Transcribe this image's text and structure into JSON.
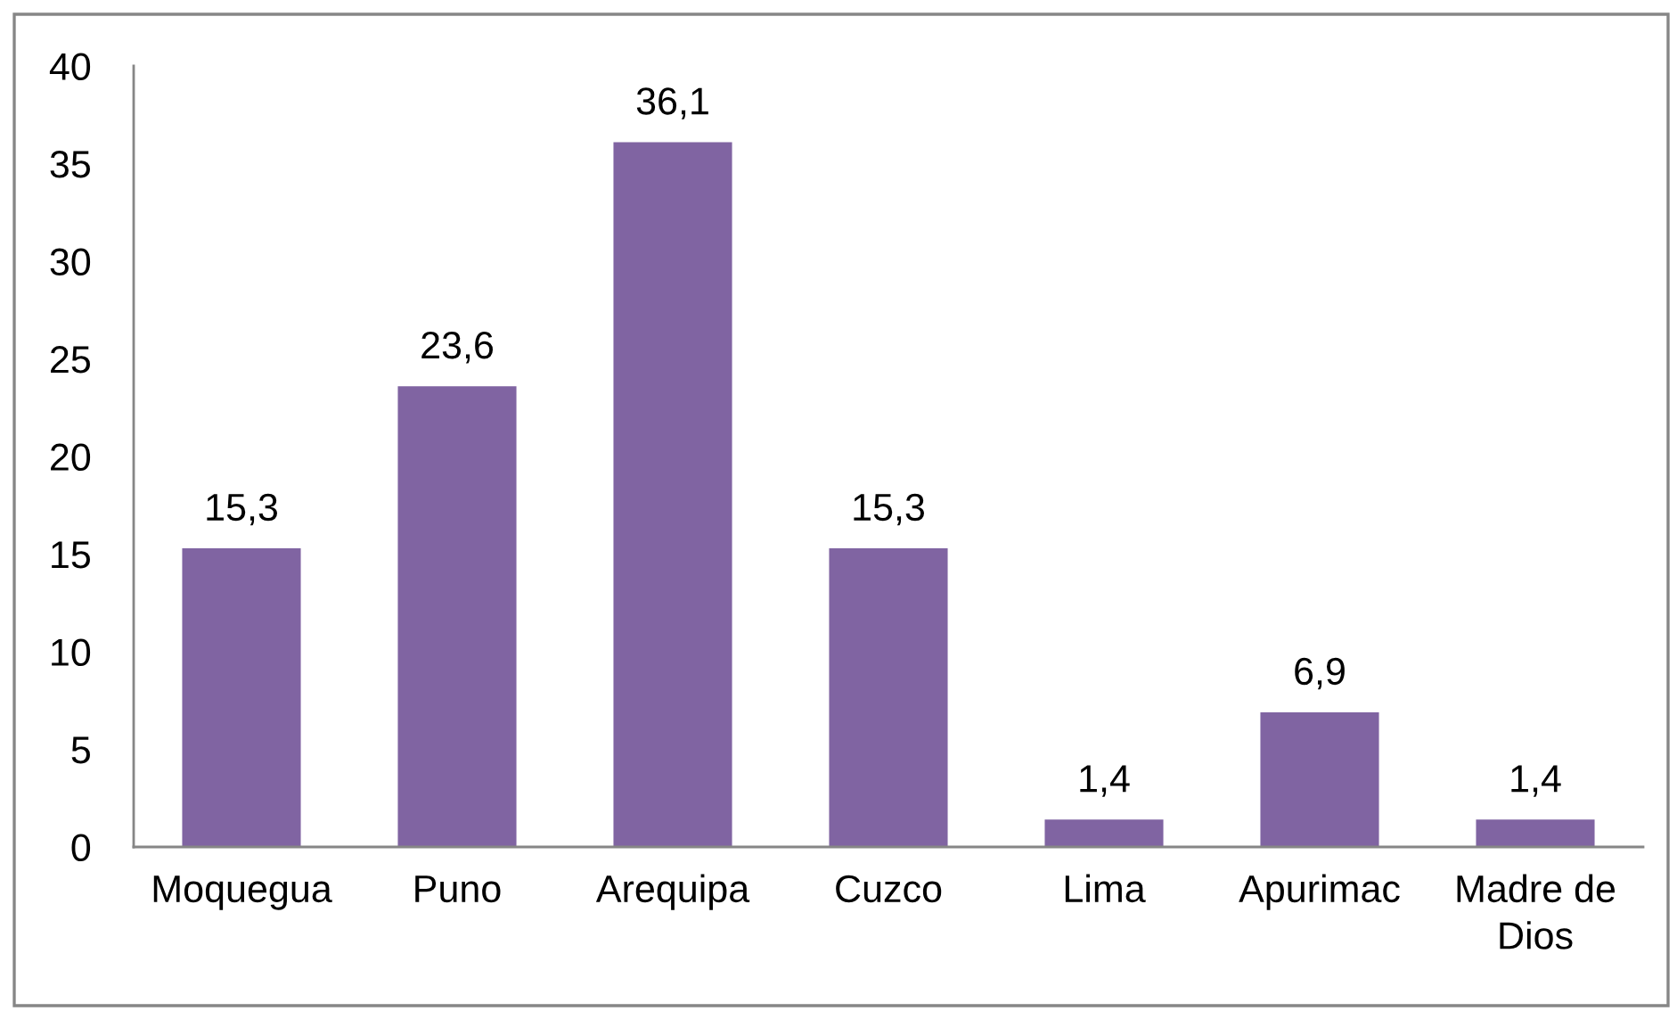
{
  "chart_data": {
    "type": "bar",
    "categories": [
      "Moquegua",
      "Puno",
      "Arequipa",
      "Cuzco",
      "Lima",
      "Apurimac",
      "Madre de Dios"
    ],
    "values": [
      15.3,
      23.6,
      36.1,
      15.3,
      1.4,
      6.9,
      1.4
    ],
    "value_labels": [
      "15,3",
      "23,6",
      "36,1",
      "15,3",
      "1,4",
      "6,9",
      "1,4"
    ],
    "color": "#8064a2",
    "ylim": [
      0,
      40
    ],
    "yticks": [
      0,
      5,
      10,
      15,
      20,
      25,
      30,
      35,
      40
    ],
    "grid": false,
    "legend": false
  }
}
